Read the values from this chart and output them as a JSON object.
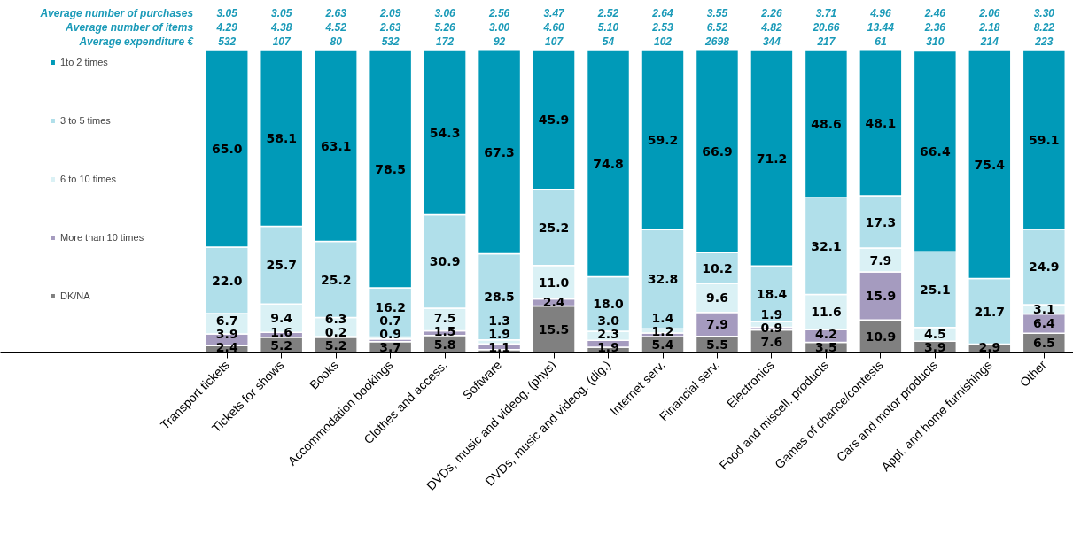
{
  "chart_data": {
    "type": "bar",
    "stacked": true,
    "legend": "left",
    "grid": false,
    "categories": [
      "Transport tickets",
      "Tickets for shows",
      "Books",
      "Accommodation bookings",
      "Clothes and access.",
      "Software",
      "DVDs, music and videog. (phys)",
      "DVDs, music and videog. (dig.)",
      "Internet serv.",
      "Financial serv.",
      "Electronics",
      "Food and miscell. products",
      "Games of chance/contests",
      "Cars and motor products",
      "Appl. and home furnishings",
      "Other"
    ],
    "series": [
      {
        "name": "DK/NA",
        "color": "#808080",
        "values": [
          2.4,
          5.2,
          5.2,
          3.7,
          5.8,
          1.1,
          15.5,
          1.9,
          5.4,
          5.5,
          7.6,
          3.5,
          10.9,
          3.9,
          2.9,
          6.5
        ],
        "value_labels": [
          "2.4",
          "5.2",
          "5.2",
          "3.7",
          "5.8",
          "1.1",
          "15.5",
          "1.9",
          "5.4",
          "5.5",
          "7.6",
          "3.5",
          "10.9",
          "3.9",
          "2.9",
          "6.5"
        ]
      },
      {
        "name": "More than 10 times",
        "color": "#a59bbf",
        "values": [
          3.9,
          1.6,
          0.2,
          0.9,
          1.5,
          1.9,
          2.4,
          2.3,
          1.2,
          7.9,
          0.9,
          4.2,
          15.9,
          null,
          null,
          6.4
        ],
        "value_labels": [
          "3.9",
          "1.6",
          "0.2",
          "0.9",
          "1.5",
          "1.9",
          "2.4",
          "2.3",
          "1.2",
          "7.9",
          "0.9",
          "4.2",
          "15.9",
          null,
          null,
          "6.4"
        ]
      },
      {
        "name": "6 to 10 times",
        "color": "#daf1f5",
        "values": [
          6.7,
          9.4,
          6.3,
          0.7,
          7.5,
          1.3,
          11.0,
          3.0,
          1.4,
          9.6,
          1.9,
          11.6,
          7.9,
          4.5,
          null,
          3.1
        ],
        "value_labels": [
          "6.7",
          "9.4",
          "6.3",
          "0.7",
          "7.5",
          "1.3",
          "11.0",
          "3.0",
          "1.4",
          "9.6",
          "1.9",
          "11.6",
          "7.9",
          "4.5",
          null,
          "3.1"
        ]
      },
      {
        "name": "3 to 5 times",
        "color": "#b0dfea",
        "values": [
          22.0,
          25.7,
          25.2,
          16.2,
          30.9,
          28.5,
          25.2,
          18.0,
          32.8,
          10.2,
          18.4,
          32.1,
          17.3,
          25.1,
          21.7,
          24.9
        ],
        "value_labels": [
          "22.0",
          "25.7",
          "25.2",
          "16.2",
          "30.9",
          "28.5",
          "25.2",
          "18.0",
          "32.8",
          "10.2",
          "18.4",
          "32.1",
          "17.3",
          "25.1",
          "21.7",
          "24.9"
        ]
      },
      {
        "name": "1to 2 times",
        "color": "#009ab8",
        "values": [
          65.0,
          58.1,
          63.1,
          78.5,
          54.3,
          67.3,
          45.9,
          74.8,
          59.2,
          66.9,
          71.2,
          48.6,
          48.1,
          66.4,
          75.4,
          59.1
        ],
        "value_labels": [
          "65.0",
          "58.1",
          "63.1",
          "78.5",
          "54.3",
          "67.3",
          "45.9",
          "74.8",
          "59.2",
          "66.9",
          "71.2",
          "48.6",
          "48.1",
          "66.4",
          "75.4",
          "59.1"
        ]
      }
    ],
    "annotations": [
      "Average number of purchases",
      "3.05",
      "3.05",
      "2.63",
      "2.09",
      "3.06",
      "2.56",
      "3.47",
      "2.52",
      "2.64",
      "3.55",
      "2.26",
      "3.71",
      "4.96",
      "2.46",
      "2.06",
      "3.30",
      "Average number of items",
      "4.29",
      "4.38",
      "4.52",
      "2.63",
      "5.26",
      "3.00",
      "4.60",
      "5.10",
      "2.53",
      "6.52",
      "4.82",
      "20.66",
      "13.44",
      "2.36",
      "2.18",
      "8.22",
      "Average expenditure €",
      "532",
      "107",
      "80",
      "532",
      "172",
      "92",
      "107",
      "54",
      "102",
      "2698",
      "344",
      "217",
      "61",
      "310",
      "214",
      "223"
    ]
  }
}
